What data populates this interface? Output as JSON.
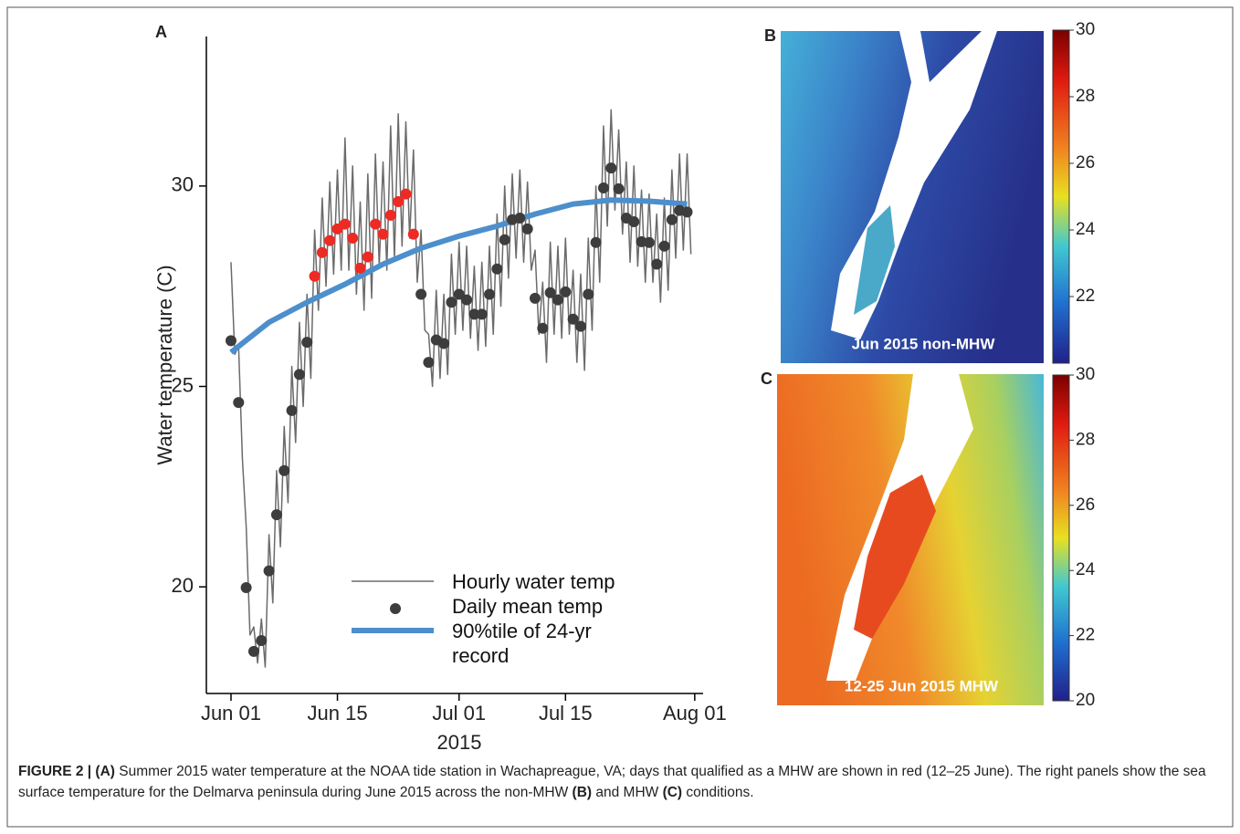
{
  "chart_data": [
    {
      "type": "line",
      "panel": "A",
      "ylabel": "Water temperature (C)",
      "xlabel": "2015",
      "xlim": [
        -3.24,
        62.1
      ],
      "ylim": [
        17.34,
        33.73
      ],
      "xticks": [
        {
          "value": 0,
          "label": "Jun 01"
        },
        {
          "value": 14,
          "label": "Jun 15"
        },
        {
          "value": 30,
          "label": "Jul 01"
        },
        {
          "value": 44,
          "label": "Jul 15"
        },
        {
          "value": 61,
          "label": "Aug 01"
        }
      ],
      "yticks": [
        20,
        25,
        30
      ],
      "series": [
        {
          "name": "Hourly water temp",
          "style": "line",
          "color": "#6b6b6b",
          "width": 1.5,
          "x": [
            0,
            0.5,
            1,
            1.5,
            2,
            2.5,
            3,
            3.5,
            4,
            4.5,
            5,
            5.5,
            6,
            6.5,
            7,
            7.5,
            8,
            8.5,
            9,
            9.5,
            10,
            10.5,
            11,
            11.5,
            12,
            12.5,
            13,
            13.5,
            14,
            14.5,
            15,
            15.5,
            16,
            16.5,
            17,
            17.5,
            18,
            18.5,
            19,
            19.5,
            20,
            20.5,
            21,
            21.5,
            22,
            22.5,
            23,
            23.5,
            24,
            24.5,
            25,
            25.5,
            26,
            26.5,
            27,
            27.5,
            28,
            28.5,
            29,
            29.5,
            30,
            30.5,
            31,
            31.5,
            32,
            32.5,
            33,
            33.5,
            34,
            34.5,
            35,
            35.5,
            36,
            36.5,
            37,
            37.5,
            38,
            38.5,
            39,
            39.5,
            40,
            40.5,
            41,
            41.5,
            42,
            42.5,
            43,
            43.5,
            44,
            44.5,
            45,
            45.5,
            46,
            46.5,
            47,
            47.5,
            48,
            48.5,
            49,
            49.5,
            50,
            50.5,
            51,
            51.5,
            52,
            52.5,
            53,
            53.5,
            54,
            54.5,
            55,
            55.5,
            56,
            56.5,
            57,
            57.5,
            58,
            58.5,
            59,
            59.5,
            60,
            60.5
          ],
          "values": [
            28.1,
            25.8,
            26.0,
            23.2,
            21.5,
            18.8,
            19.0,
            18.1,
            19.2,
            18.0,
            21.3,
            19.6,
            22.9,
            21.0,
            24.0,
            22.1,
            25.5,
            23.6,
            26.6,
            24.5,
            27.3,
            25.2,
            28.9,
            26.9,
            29.7,
            27.5,
            30.1,
            27.8,
            30.4,
            27.9,
            31.2,
            27.9,
            30.5,
            27.3,
            29.6,
            26.9,
            30.3,
            27.2,
            30.8,
            28.0,
            30.6,
            27.9,
            31.5,
            28.2,
            31.8,
            28.5,
            31.6,
            28.7,
            30.9,
            27.6,
            28.9,
            26.4,
            26.3,
            25.0,
            27.4,
            25.2,
            27.3,
            25.3,
            28.3,
            26.3,
            28.6,
            26.4,
            28.5,
            26.2,
            28.0,
            25.9,
            28.1,
            26.0,
            28.5,
            26.3,
            29.3,
            27.0,
            30.0,
            27.7,
            30.3,
            28.2,
            30.4,
            28.1,
            30.1,
            27.9,
            28.4,
            26.3,
            27.6,
            25.6,
            28.6,
            26.3,
            28.5,
            26.2,
            28.7,
            26.3,
            27.9,
            25.6,
            27.8,
            25.4,
            28.7,
            26.4,
            30.0,
            27.6,
            31.5,
            29.0,
            31.9,
            29.4,
            31.4,
            28.8,
            30.6,
            28.1,
            30.5,
            28.0,
            29.9,
            27.6,
            29.8,
            27.6,
            29.3,
            27.1,
            29.7,
            27.4,
            30.4,
            28.2,
            30.8,
            28.4,
            30.8,
            28.3
          ]
        },
        {
          "name": "Daily mean temp",
          "style": "points",
          "color": "#3d3d3d",
          "x": [
            0,
            1,
            2,
            3,
            4,
            5,
            6,
            7,
            8,
            9,
            10,
            11,
            12,
            13,
            14,
            15,
            16,
            17,
            18,
            19,
            20,
            21,
            22,
            23,
            24,
            25,
            26,
            27,
            28,
            29,
            30,
            31,
            32,
            33,
            34,
            35,
            36,
            37,
            38,
            39,
            40,
            41,
            42,
            43,
            44,
            45,
            46,
            47,
            48,
            49,
            50,
            51,
            52,
            53,
            54,
            55,
            56,
            57,
            58,
            59,
            60
          ],
          "values": [
            26.14,
            24.6,
            19.98,
            18.39,
            18.66,
            20.4,
            21.8,
            22.9,
            24.4,
            25.3,
            26.1,
            27.75,
            28.34,
            28.64,
            28.93,
            29.05,
            28.7,
            27.95,
            28.23,
            29.05,
            28.8,
            29.27,
            29.61,
            29.8,
            28.8,
            27.3,
            25.6,
            26.16,
            26.07,
            27.1,
            27.3,
            27.16,
            26.8,
            26.8,
            27.3,
            27.93,
            28.66,
            29.16,
            29.2,
            28.93,
            27.2,
            26.45,
            27.34,
            27.16,
            27.36,
            26.68,
            26.5,
            27.3,
            28.59,
            29.95,
            30.45,
            29.93,
            29.2,
            29.11,
            28.61,
            28.59,
            28.05,
            28.5,
            29.16,
            29.39,
            29.35
          ],
          "point_colors": [
            "#3d3d3d",
            "#3d3d3d",
            "#3d3d3d",
            "#3d3d3d",
            "#3d3d3d",
            "#3d3d3d",
            "#3d3d3d",
            "#3d3d3d",
            "#3d3d3d",
            "#3d3d3d",
            "#3d3d3d",
            "#ee2a24",
            "#ee2a24",
            "#ee2a24",
            "#ee2a24",
            "#ee2a24",
            "#ee2a24",
            "#ee2a24",
            "#ee2a24",
            "#ee2a24",
            "#ee2a24",
            "#ee2a24",
            "#ee2a24",
            "#ee2a24",
            "#ee2a24",
            "#3d3d3d",
            "#3d3d3d",
            "#3d3d3d",
            "#3d3d3d",
            "#3d3d3d",
            "#3d3d3d",
            "#3d3d3d",
            "#3d3d3d",
            "#3d3d3d",
            "#3d3d3d",
            "#3d3d3d",
            "#3d3d3d",
            "#3d3d3d",
            "#3d3d3d",
            "#3d3d3d",
            "#3d3d3d",
            "#3d3d3d",
            "#3d3d3d",
            "#3d3d3d",
            "#3d3d3d",
            "#3d3d3d",
            "#3d3d3d",
            "#3d3d3d",
            "#3d3d3d",
            "#3d3d3d",
            "#3d3d3d",
            "#3d3d3d",
            "#3d3d3d",
            "#3d3d3d",
            "#3d3d3d",
            "#3d3d3d",
            "#3d3d3d",
            "#3d3d3d",
            "#3d3d3d",
            "#3d3d3d",
            "#3d3d3d"
          ]
        },
        {
          "name": "90%tile of 24-yr record",
          "style": "line",
          "color": "#4d8fcc",
          "width": 6,
          "x": [
            0,
            5,
            10,
            15,
            20,
            25,
            30,
            35,
            40,
            45,
            50,
            55,
            60
          ],
          "values": [
            25.85,
            26.6,
            27.1,
            27.55,
            28.05,
            28.45,
            28.75,
            29.0,
            29.3,
            29.55,
            29.65,
            29.62,
            29.55
          ]
        }
      ]
    },
    {
      "type": "heatmap",
      "panel": "B",
      "annotation": "Jun 2015 non-MHW",
      "clim": [
        20,
        30
      ],
      "cticks": [
        22,
        24,
        26,
        28,
        30
      ]
    },
    {
      "type": "heatmap",
      "panel": "C",
      "annotation": "12-25 Jun 2015 MHW",
      "clim": [
        20,
        30
      ],
      "cticks": [
        20,
        22,
        24,
        26,
        28,
        30
      ]
    }
  ],
  "caption": [
    {
      "text": "FIGURE 2 | (A)",
      "bold": true
    },
    {
      "text": " Summer 2015 water temperature at the NOAA tide station in Wachapreague, VA; days that qualified as a MHW are shown in red (12–25 June). The right panels show the sea surface temperature for the Delmarva peninsula during June 2015 across the non-MHW ",
      "bold": false
    },
    {
      "text": "(B)",
      "bold": true
    },
    {
      "text": " and MHW ",
      "bold": false
    },
    {
      "text": "(C)",
      "bold": true
    },
    {
      "text": " conditions.",
      "bold": false
    }
  ]
}
